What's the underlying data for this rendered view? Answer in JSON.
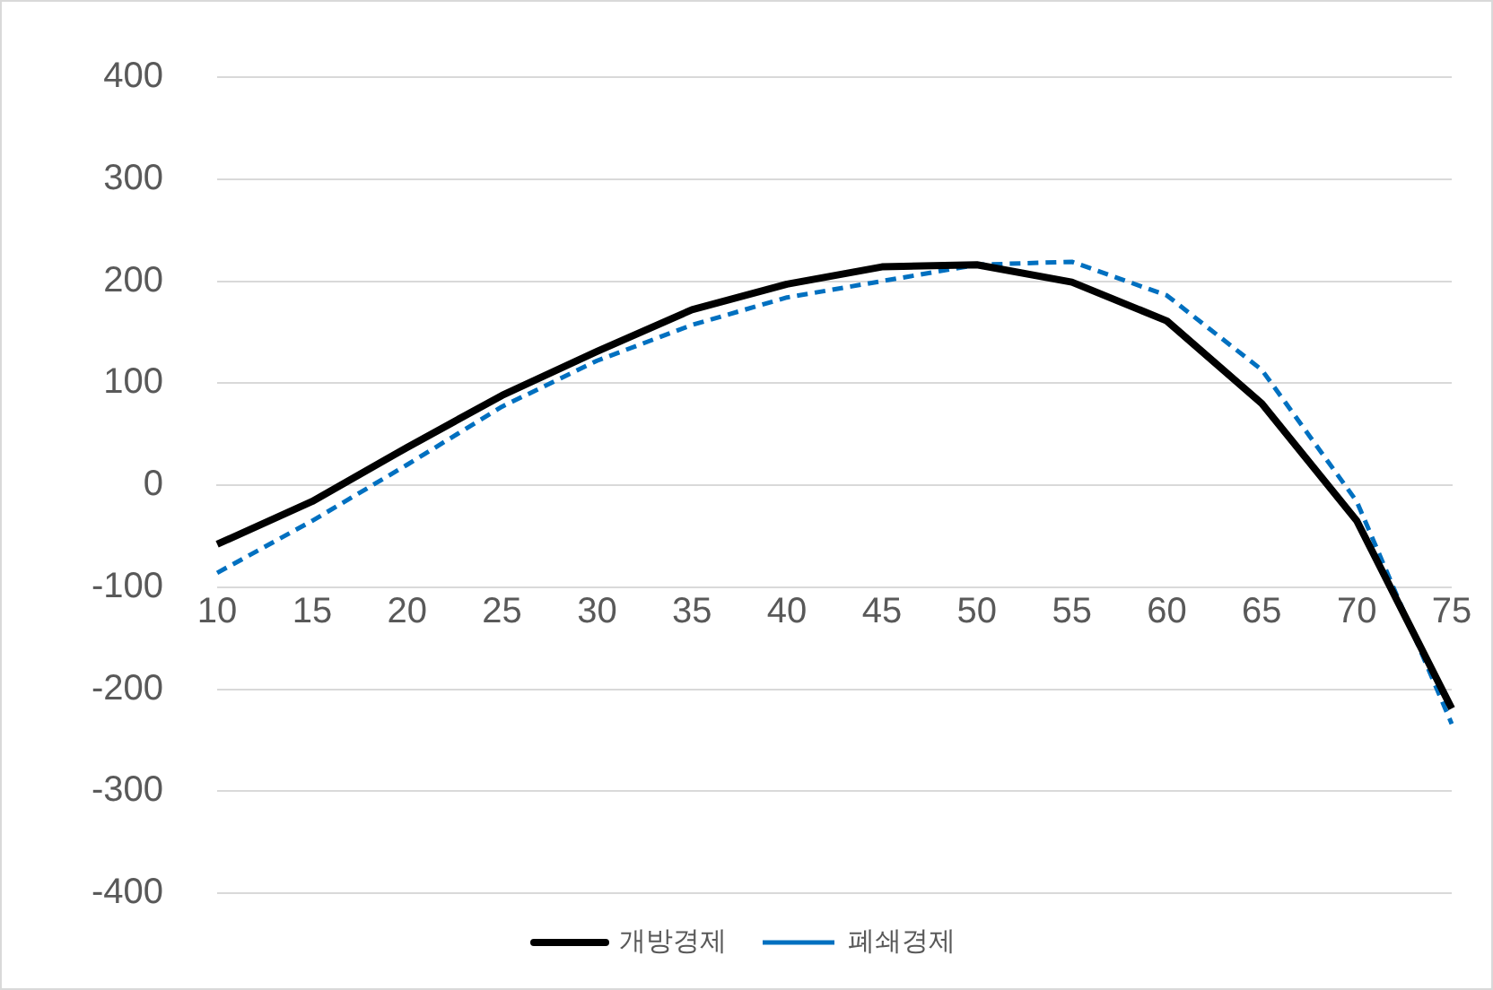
{
  "chart_data": {
    "type": "line",
    "categories": [
      "10",
      "15",
      "20",
      "25",
      "30",
      "35",
      "40",
      "45",
      "50",
      "55",
      "60",
      "65",
      "70",
      "75"
    ],
    "series": [
      {
        "name": "개방경제",
        "color": "#000000",
        "line_style": "solid",
        "values": [
          -58,
          -16,
          37,
          88,
          131,
          172,
          197,
          214,
          216,
          199,
          161,
          80,
          -35,
          -219
        ]
      },
      {
        "name": "폐쇄경제",
        "color": "#0070c0",
        "line_style": "dashed",
        "values": [
          -86,
          -35,
          20,
          77,
          122,
          157,
          184,
          200,
          216,
          219,
          186,
          113,
          -16,
          -234
        ]
      }
    ],
    "ylim": [
      -400,
      400
    ],
    "yticks": [
      -400,
      -300,
      -200,
      -100,
      0,
      100,
      200,
      300,
      400
    ],
    "grid": "y",
    "legend": "bottom",
    "marker": "none"
  }
}
